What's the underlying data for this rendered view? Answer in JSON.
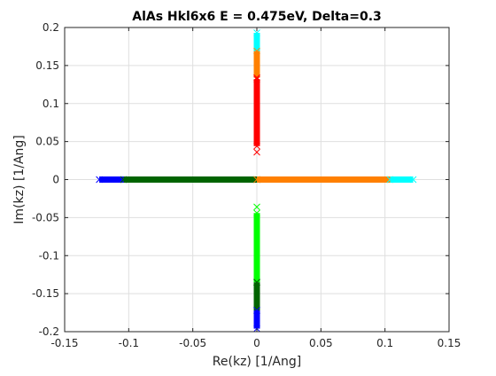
{
  "chart_data": {
    "type": "scatter",
    "title": "AlAs Hkl6x6 E = 0.475eV, Delta=0.3",
    "xlabel": "Re(kz) [1/Ang]",
    "ylabel": "Im(kz) [1/Ang]",
    "xlim": [
      -0.15,
      0.15
    ],
    "ylim": [
      -0.2,
      0.2
    ],
    "grid": true,
    "xticks": [
      -0.15,
      -0.1,
      -0.05,
      0,
      0.05,
      0.1,
      0.15
    ],
    "xtick_labels": [
      "-0.15",
      "-0.1",
      "-0.05",
      "0",
      "0.05",
      "0.1",
      "0.15"
    ],
    "yticks": [
      -0.2,
      -0.15,
      -0.1,
      -0.05,
      0,
      0.05,
      0.1,
      0.15,
      0.2
    ],
    "ytick_labels": [
      "-0.2",
      "-0.15",
      "-0.1",
      "-0.05",
      "0",
      "0.05",
      "0.1",
      "0.15",
      "0.2"
    ],
    "marker": "x",
    "series": [
      {
        "color": "#0000ff",
        "segment": {
          "x": [
            -0.123,
            -0.104
          ],
          "y": [
            0,
            0
          ]
        },
        "points": []
      },
      {
        "color": "#006400",
        "segment": {
          "x": [
            -0.104,
            0
          ],
          "y": [
            0,
            0
          ]
        },
        "points": [
          {
            "x": 0,
            "y": 0
          }
        ]
      },
      {
        "color": "#ff8000",
        "segment": {
          "x": [
            0,
            0.104
          ],
          "y": [
            0,
            0
          ]
        },
        "points": []
      },
      {
        "color": "#00ffff",
        "segment": {
          "x": [
            0.104,
            0.122
          ],
          "y": [
            0,
            0
          ]
        },
        "points": []
      },
      {
        "color": "#00ffff",
        "segment": {
          "x": [
            0,
            0
          ],
          "y": [
            0.169,
            0.193
          ]
        },
        "points": []
      },
      {
        "color": "#ff8000",
        "segment": {
          "x": [
            0,
            0
          ],
          "y": [
            0.134,
            0.169
          ]
        },
        "points": []
      },
      {
        "color": "#ff0000",
        "segment": {
          "x": [
            0,
            0
          ],
          "y": [
            0.044,
            0.132
          ]
        },
        "points": [
          {
            "x": 0,
            "y": 0.036
          },
          {
            "x": 0,
            "y": 0.134
          }
        ]
      },
      {
        "color": "#00ff00",
        "segment": {
          "x": [
            0,
            0
          ],
          "y": [
            -0.135,
            -0.044
          ]
        },
        "points": [
          {
            "x": 0,
            "y": -0.036
          }
        ]
      },
      {
        "color": "#006400",
        "segment": {
          "x": [
            0,
            0
          ],
          "y": [
            -0.172,
            -0.135
          ]
        },
        "points": [
          {
            "x": 0,
            "y": -0.135
          }
        ]
      },
      {
        "color": "#0000ff",
        "segment": {
          "x": [
            0,
            0
          ],
          "y": [
            -0.196,
            -0.172
          ]
        },
        "points": []
      }
    ]
  }
}
